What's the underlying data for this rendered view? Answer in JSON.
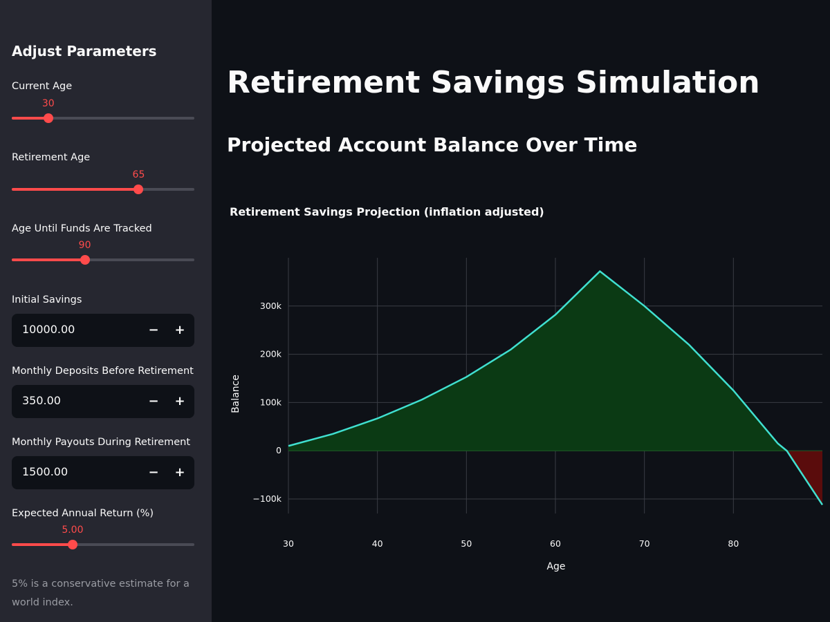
{
  "sidebar": {
    "title": "Adjust Parameters",
    "current_age": {
      "label": "Current Age",
      "value": "30",
      "fraction": 0.2
    },
    "retirement_age": {
      "label": "Retirement Age",
      "value": "65",
      "fraction": 0.695
    },
    "tracked_age": {
      "label": "Age Until Funds Are Tracked",
      "value": "90",
      "fraction": 0.4
    },
    "initial_savings": {
      "label": "Initial Savings",
      "value": "10000.00",
      "minus": "−",
      "plus": "+"
    },
    "monthly_deposits": {
      "label": "Monthly Deposits Before Retirement",
      "value": "350.00",
      "minus": "−",
      "plus": "+"
    },
    "monthly_payouts": {
      "label": "Monthly Payouts During Retirement",
      "value": "1500.00",
      "minus": "−",
      "plus": "+"
    },
    "annual_return": {
      "label": "Expected Annual Return (%)",
      "value": "5.00",
      "fraction": 0.333
    },
    "caption": "5% is a conservative estimate for a world index."
  },
  "main": {
    "title": "Retirement Savings Simulation",
    "subtitle": "Projected Account Balance Over Time"
  },
  "colors": {
    "accent": "#ff4b4b",
    "line": "#40e0d0",
    "positive_fill": "#0b3a14",
    "negative_fill": "#5a0c0c",
    "grid": "#3a3d45"
  },
  "chart_data": {
    "type": "area",
    "title": "Retirement Savings Projection (inflation adjusted)",
    "xlabel": "Age",
    "ylabel": "Balance",
    "xlim": [
      30,
      90
    ],
    "ylim": [
      -130000,
      400000
    ],
    "xticks": [
      30,
      40,
      50,
      60,
      70,
      80
    ],
    "yticks": [
      -100000,
      0,
      100000,
      200000,
      300000
    ],
    "ytick_labels": [
      "−100k",
      "0",
      "100k",
      "200k",
      "300k"
    ],
    "grid": true,
    "x": [
      30,
      35,
      40,
      45,
      50,
      55,
      60,
      65,
      70,
      75,
      80,
      85,
      86,
      90
    ],
    "values": [
      10000,
      35000,
      67000,
      106000,
      153000,
      210000,
      282000,
      372000,
      300000,
      220000,
      125000,
      15000,
      0,
      -112000
    ]
  }
}
